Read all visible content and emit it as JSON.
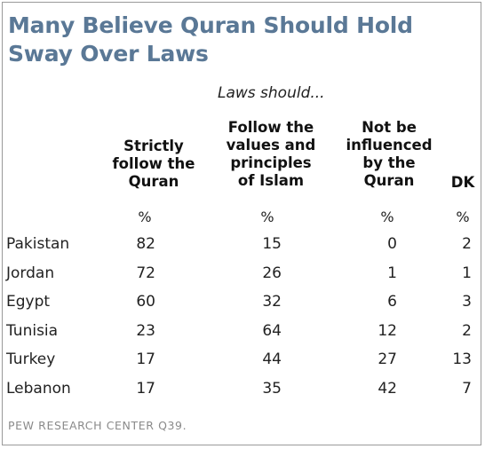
{
  "chart_data": {
    "type": "table",
    "title": "Many Believe Quran Should Hold Sway Over Laws",
    "subtitle": "Laws should...",
    "columns": [
      "Strictly\nfollow the\nQuran",
      "Follow the\nvalues and\nprinciples\nof Islam",
      "Not be\ninfluenced\nby the\nQuran",
      "DK"
    ],
    "unit_row": [
      "%",
      "%",
      "%",
      "%"
    ],
    "rows": [
      {
        "country": "Pakistan",
        "values": [
          82,
          15,
          0,
          2
        ]
      },
      {
        "country": "Jordan",
        "values": [
          72,
          26,
          1,
          1
        ]
      },
      {
        "country": "Egypt",
        "values": [
          60,
          32,
          6,
          3
        ]
      },
      {
        "country": "Tunisia",
        "values": [
          23,
          64,
          12,
          2
        ]
      },
      {
        "country": "Turkey",
        "values": [
          17,
          44,
          27,
          13
        ]
      },
      {
        "country": "Lebanon",
        "values": [
          17,
          35,
          42,
          7
        ]
      }
    ],
    "source": "PEW RESEARCH CENTER Q39."
  }
}
